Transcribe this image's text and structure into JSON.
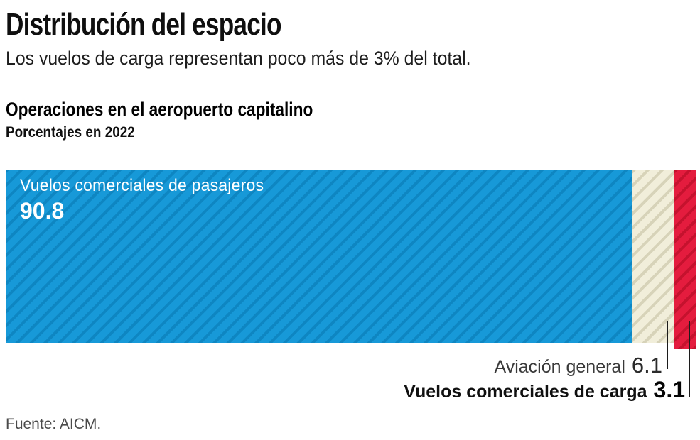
{
  "header": {
    "title": "Distribución del espacio",
    "subtitle": "Los vuelos de carga representan poco más de 3% del total."
  },
  "chart": {
    "heading": "Operaciones en el aeropuerto capitalino",
    "subheading": "Porcentajes en 2022"
  },
  "chart_data": {
    "type": "bar",
    "orientation": "horizontal-stacked",
    "title": "Operaciones en el aeropuerto capitalino",
    "subtitle": "Porcentajes en 2022",
    "unit": "percent",
    "year": "2022",
    "total": 100,
    "legend_position": "on-chart",
    "grid": false,
    "segments": [
      {
        "id": "vuelos-comerciales-pasajeros",
        "label": "Vuelos comerciales de pasajeros",
        "value": 90.8,
        "value_label": "90.8",
        "color": "#1799d8",
        "hatch_color": "#0e86c2",
        "label_position": "inside",
        "emphasis": false
      },
      {
        "id": "aviacion-general",
        "label": "Aviación general",
        "value": 6.1,
        "value_label": "6.1",
        "color": "#f1eeda",
        "hatch_color": "#d7d3b9",
        "label_position": "below",
        "emphasis": false
      },
      {
        "id": "vuelos-comerciales-carga",
        "label": "Vuelos comerciales de carga",
        "value": 3.1,
        "value_label": "3.1",
        "color": "#e41c3e",
        "hatch_color": "#c5122e",
        "label_position": "below",
        "emphasis": true
      }
    ]
  },
  "footer": {
    "source": "Fuente: AICM."
  }
}
